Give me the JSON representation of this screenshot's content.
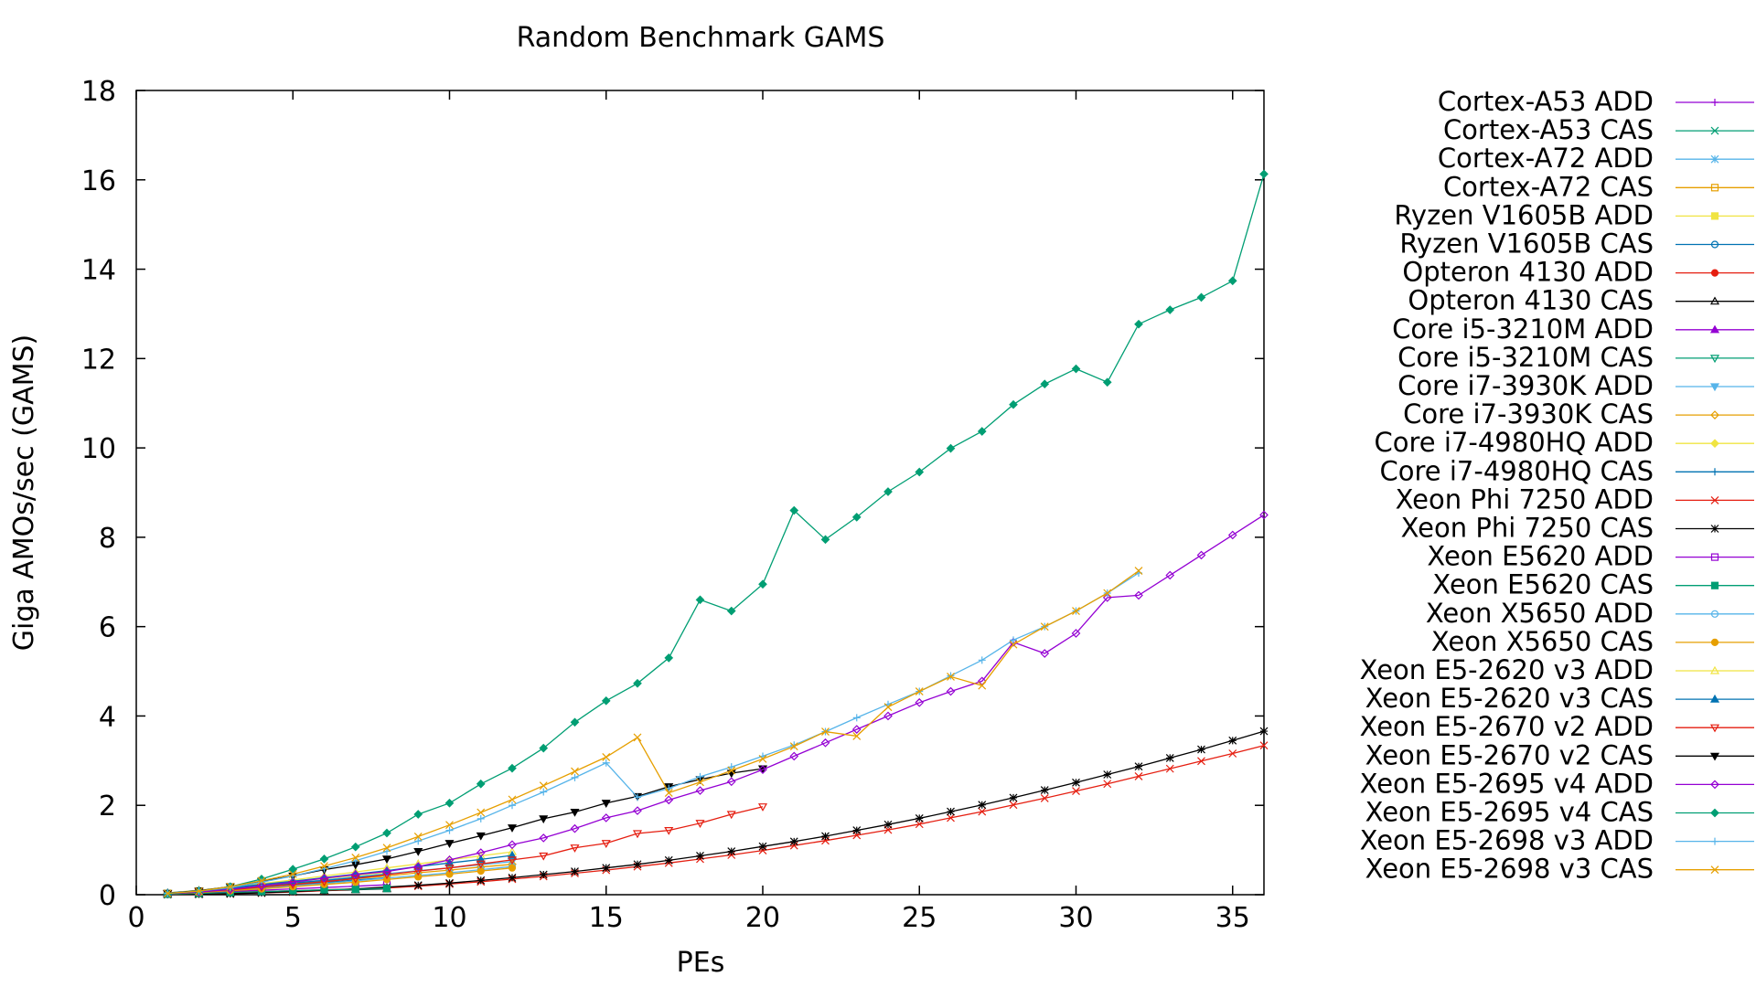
{
  "chart_data": {
    "type": "line",
    "title": "Random Benchmark GAMS",
    "xlabel": "PEs",
    "ylabel": "Giga AMOs/sec (GAMS)",
    "xlim": [
      0,
      36
    ],
    "ylim": [
      0,
      18
    ],
    "xticks": [
      0,
      5,
      10,
      15,
      20,
      25,
      30,
      35
    ],
    "yticks": [
      0,
      2,
      4,
      6,
      8,
      10,
      12,
      14,
      16,
      18
    ],
    "grid": false,
    "legend_position": "right",
    "series": [
      {
        "name": "Cortex-A53 ADD",
        "color": "#9400d3",
        "marker": "plus",
        "x": [
          1,
          2,
          3,
          4
        ],
        "y": [
          0.01,
          0.03,
          0.05,
          0.07
        ]
      },
      {
        "name": "Cortex-A53 CAS",
        "color": "#009e73",
        "marker": "cross",
        "x": [
          1,
          2,
          3,
          4
        ],
        "y": [
          0.01,
          0.02,
          0.04,
          0.05
        ]
      },
      {
        "name": "Cortex-A72 ADD",
        "color": "#56b4e9",
        "marker": "star",
        "x": [
          1,
          2,
          3,
          4
        ],
        "y": [
          0.02,
          0.05,
          0.09,
          0.12
        ]
      },
      {
        "name": "Cortex-A72 CAS",
        "color": "#e69f00",
        "marker": "square",
        "x": [
          1,
          2,
          3,
          4
        ],
        "y": [
          0.02,
          0.04,
          0.08,
          0.1
        ]
      },
      {
        "name": "Ryzen V1605B ADD",
        "color": "#f0e442",
        "marker": "filled-square",
        "x": [
          1,
          2,
          3,
          4,
          5,
          6,
          7,
          8
        ],
        "y": [
          0.03,
          0.07,
          0.12,
          0.18,
          0.24,
          0.3,
          0.36,
          0.42
        ]
      },
      {
        "name": "Ryzen V1605B CAS",
        "color": "#0072b2",
        "marker": "circle",
        "x": [
          1,
          2,
          3,
          4,
          5,
          6,
          7,
          8
        ],
        "y": [
          0.03,
          0.06,
          0.11,
          0.16,
          0.21,
          0.27,
          0.33,
          0.38
        ]
      },
      {
        "name": "Opteron 4130 ADD",
        "color": "#e51e10",
        "marker": "filled-circle",
        "x": [
          1,
          2,
          3,
          4,
          5,
          6,
          7,
          8
        ],
        "y": [
          0.01,
          0.03,
          0.05,
          0.07,
          0.09,
          0.11,
          0.13,
          0.15
        ]
      },
      {
        "name": "Opteron 4130 CAS",
        "color": "#000000",
        "marker": "triangle",
        "x": [
          1,
          2,
          3,
          4,
          5,
          6,
          7,
          8
        ],
        "y": [
          0.01,
          0.02,
          0.04,
          0.06,
          0.07,
          0.09,
          0.11,
          0.13
        ]
      },
      {
        "name": "Core i5-3210M ADD",
        "color": "#9400d3",
        "marker": "filled-triangle",
        "x": [
          1,
          2,
          3,
          4
        ],
        "y": [
          0.03,
          0.07,
          0.11,
          0.15
        ]
      },
      {
        "name": "Core i5-3210M CAS",
        "color": "#009e73",
        "marker": "triangle-down",
        "x": [
          1,
          2,
          3,
          4
        ],
        "y": [
          0.03,
          0.06,
          0.1,
          0.13
        ]
      },
      {
        "name": "Core i7-3930K ADD",
        "color": "#56b4e9",
        "marker": "filled-triangle-down",
        "x": [
          1,
          2,
          3,
          4,
          5,
          6,
          7,
          8,
          9,
          10,
          11,
          12
        ],
        "y": [
          0.03,
          0.08,
          0.14,
          0.2,
          0.27,
          0.33,
          0.4,
          0.47,
          0.54,
          0.6,
          0.67,
          0.74
        ]
      },
      {
        "name": "Core i7-3930K CAS",
        "color": "#e69f00",
        "marker": "diamond",
        "x": [
          1,
          2,
          3,
          4,
          5,
          6,
          7,
          8,
          9,
          10,
          11,
          12
        ],
        "y": [
          0.03,
          0.07,
          0.13,
          0.19,
          0.24,
          0.3,
          0.36,
          0.42,
          0.49,
          0.55,
          0.62,
          0.68
        ]
      },
      {
        "name": "Core i7-4980HQ ADD",
        "color": "#f0e442",
        "marker": "filled-diamond",
        "x": [
          1,
          2,
          3,
          4,
          5,
          6,
          7,
          8
        ],
        "y": [
          0.04,
          0.09,
          0.15,
          0.22,
          0.29,
          0.36,
          0.43,
          0.5
        ]
      },
      {
        "name": "Core i7-4980HQ CAS",
        "color": "#0072b2",
        "marker": "plus",
        "x": [
          1,
          2,
          3,
          4,
          5,
          6,
          7,
          8
        ],
        "y": [
          0.03,
          0.08,
          0.14,
          0.2,
          0.26,
          0.32,
          0.38,
          0.45
        ]
      },
      {
        "name": "Xeon Phi 7250 ADD",
        "color": "#e51e10",
        "marker": "cross",
        "x": [
          1,
          2,
          3,
          4,
          5,
          6,
          7,
          8,
          9,
          10,
          11,
          12,
          13,
          14,
          15,
          16,
          17,
          18,
          19,
          20,
          21,
          22,
          23,
          24,
          25,
          26,
          27,
          28,
          29,
          30,
          31,
          32,
          33,
          34,
          35,
          36
        ],
        "y": [
          0.003,
          0.01,
          0.02,
          0.04,
          0.06,
          0.09,
          0.12,
          0.15,
          0.19,
          0.24,
          0.29,
          0.35,
          0.41,
          0.48,
          0.55,
          0.63,
          0.71,
          0.8,
          0.89,
          0.99,
          1.1,
          1.21,
          1.33,
          1.45,
          1.58,
          1.72,
          1.86,
          2.01,
          2.16,
          2.32,
          2.48,
          2.65,
          2.82,
          2.99,
          3.16,
          3.34
        ]
      },
      {
        "name": "Xeon Phi 7250 CAS",
        "color": "#000000",
        "marker": "star",
        "x": [
          1,
          2,
          3,
          4,
          5,
          6,
          7,
          8,
          9,
          10,
          11,
          12,
          13,
          14,
          15,
          16,
          17,
          18,
          19,
          20,
          21,
          22,
          23,
          24,
          25,
          26,
          27,
          28,
          29,
          30,
          31,
          32,
          33,
          34,
          35,
          36
        ],
        "y": [
          0.003,
          0.01,
          0.02,
          0.04,
          0.07,
          0.1,
          0.13,
          0.17,
          0.21,
          0.26,
          0.32,
          0.38,
          0.45,
          0.52,
          0.6,
          0.68,
          0.77,
          0.87,
          0.97,
          1.08,
          1.19,
          1.31,
          1.44,
          1.57,
          1.71,
          1.86,
          2.01,
          2.17,
          2.34,
          2.51,
          2.69,
          2.87,
          3.06,
          3.25,
          3.45,
          3.66
        ]
      },
      {
        "name": "Xeon E5620 ADD",
        "color": "#9400d3",
        "marker": "square",
        "x": [
          1,
          2,
          3,
          4,
          5,
          6,
          7,
          8
        ],
        "y": [
          0.02,
          0.04,
          0.07,
          0.1,
          0.13,
          0.16,
          0.19,
          0.22
        ]
      },
      {
        "name": "Xeon E5620 CAS",
        "color": "#009e73",
        "marker": "filled-square",
        "x": [
          1,
          2,
          3,
          4,
          5,
          6,
          7,
          8
        ],
        "y": [
          0.01,
          0.03,
          0.05,
          0.07,
          0.09,
          0.11,
          0.12,
          0.14
        ]
      },
      {
        "name": "Xeon X5650 ADD",
        "color": "#56b4e9",
        "marker": "circle",
        "x": [
          1,
          2,
          3,
          4,
          5,
          6,
          7,
          8,
          9,
          10,
          11,
          12
        ],
        "y": [
          0.02,
          0.06,
          0.1,
          0.15,
          0.2,
          0.25,
          0.31,
          0.37,
          0.43,
          0.49,
          0.56,
          0.63
        ]
      },
      {
        "name": "Xeon X5650 CAS",
        "color": "#e69f00",
        "marker": "filled-circle",
        "x": [
          1,
          2,
          3,
          4,
          5,
          6,
          7,
          8,
          9,
          10,
          11,
          12
        ],
        "y": [
          0.02,
          0.05,
          0.09,
          0.13,
          0.18,
          0.23,
          0.28,
          0.34,
          0.4,
          0.46,
          0.53,
          0.6
        ]
      },
      {
        "name": "Xeon E5-2620 v3 ADD",
        "color": "#f0e442",
        "marker": "triangle",
        "x": [
          1,
          2,
          3,
          4,
          5,
          6,
          7,
          8,
          9,
          10,
          11,
          12
        ],
        "y": [
          0.04,
          0.1,
          0.17,
          0.25,
          0.33,
          0.42,
          0.51,
          0.6,
          0.69,
          0.78,
          0.87,
          0.96
        ]
      },
      {
        "name": "Xeon E5-2620 v3 CAS",
        "color": "#0072b2",
        "marker": "filled-triangle",
        "x": [
          1,
          2,
          3,
          4,
          5,
          6,
          7,
          8,
          9,
          10,
          11,
          12
        ],
        "y": [
          0.04,
          0.09,
          0.16,
          0.23,
          0.3,
          0.38,
          0.46,
          0.54,
          0.63,
          0.71,
          0.79,
          0.88
        ]
      },
      {
        "name": "Xeon E5-2670 v2 ADD",
        "color": "#e51e10",
        "marker": "triangle-down",
        "x": [
          1,
          2,
          3,
          4,
          5,
          6,
          7,
          8,
          9,
          10,
          11,
          12,
          13,
          14,
          15,
          16,
          17,
          18,
          19,
          20
        ],
        "y": [
          0.02,
          0.06,
          0.11,
          0.17,
          0.23,
          0.29,
          0.36,
          0.45,
          0.53,
          0.6,
          0.69,
          0.78,
          0.87,
          1.05,
          1.15,
          1.37,
          1.44,
          1.6,
          1.8,
          1.97
        ]
      },
      {
        "name": "Xeon E5-2670 v2 CAS",
        "color": "#000000",
        "marker": "filled-triangle-down",
        "x": [
          1,
          2,
          3,
          4,
          5,
          6,
          7,
          8,
          9,
          10,
          11,
          12,
          13,
          14,
          15,
          16,
          17,
          18,
          19,
          20
        ],
        "y": [
          0.03,
          0.09,
          0.18,
          0.3,
          0.42,
          0.56,
          0.67,
          0.8,
          0.97,
          1.15,
          1.32,
          1.5,
          1.7,
          1.85,
          2.05,
          2.2,
          2.42,
          2.58,
          2.72,
          2.82
        ]
      },
      {
        "name": "Xeon E5-2695 v4 ADD",
        "color": "#9400d3",
        "marker": "diamond",
        "x": [
          1,
          2,
          3,
          4,
          5,
          6,
          7,
          8,
          9,
          10,
          11,
          12,
          13,
          14,
          15,
          16,
          17,
          18,
          19,
          20,
          21,
          22,
          23,
          24,
          25,
          26,
          27,
          28,
          29,
          30,
          31,
          32,
          33,
          34,
          35,
          36
        ],
        "y": [
          0.02,
          0.06,
          0.12,
          0.2,
          0.28,
          0.37,
          0.45,
          0.52,
          0.63,
          0.78,
          0.94,
          1.12,
          1.27,
          1.48,
          1.72,
          1.88,
          2.12,
          2.33,
          2.53,
          2.8,
          3.1,
          3.4,
          3.7,
          4.0,
          4.3,
          4.55,
          4.78,
          5.65,
          5.4,
          5.85,
          6.65,
          6.7,
          7.15,
          7.6,
          8.05,
          8.5
        ]
      },
      {
        "name": "Xeon E5-2695 v4 CAS",
        "color": "#009e73",
        "marker": "filled-diamond",
        "x": [
          1,
          2,
          3,
          4,
          5,
          6,
          7,
          8,
          9,
          10,
          11,
          12,
          13,
          14,
          15,
          16,
          17,
          18,
          19,
          20,
          21,
          22,
          23,
          24,
          25,
          26,
          27,
          28,
          29,
          30,
          31,
          32,
          33,
          34,
          35,
          36
        ],
        "y": [
          0.02,
          0.08,
          0.18,
          0.35,
          0.57,
          0.8,
          1.07,
          1.38,
          1.8,
          2.05,
          2.48,
          2.83,
          3.28,
          3.86,
          4.34,
          4.73,
          5.3,
          6.6,
          6.35,
          6.95,
          8.6,
          7.95,
          8.45,
          9.02,
          9.46,
          9.99,
          10.37,
          10.97,
          11.43,
          11.77,
          11.47,
          12.77,
          13.09,
          13.37,
          13.74,
          16.13
        ]
      },
      {
        "name": "Xeon E5-2698 v3 ADD",
        "color": "#56b4e9",
        "marker": "plus",
        "x": [
          1,
          2,
          3,
          4,
          5,
          6,
          7,
          8,
          9,
          10,
          11,
          12,
          13,
          14,
          15,
          16,
          17,
          18,
          19,
          20,
          21,
          22,
          23,
          24,
          25,
          26,
          27,
          28,
          29,
          30,
          31,
          32
        ],
        "y": [
          0.03,
          0.08,
          0.16,
          0.28,
          0.42,
          0.58,
          0.76,
          0.97,
          1.2,
          1.44,
          1.7,
          2.0,
          2.3,
          2.62,
          2.95,
          2.18,
          2.38,
          2.64,
          2.86,
          3.1,
          3.35,
          3.65,
          3.96,
          4.26,
          4.55,
          4.9,
          5.25,
          5.7,
          6.0,
          6.35,
          6.75,
          7.2
        ]
      },
      {
        "name": "Xeon E5-2698 v3 CAS",
        "color": "#e69f00",
        "marker": "cross",
        "x": [
          1,
          2,
          3,
          4,
          5,
          6,
          7,
          8,
          9,
          10,
          11,
          12,
          13,
          14,
          15,
          16,
          17,
          18,
          19,
          20,
          21,
          22,
          23,
          24,
          25,
          26,
          27,
          28,
          29,
          30,
          31,
          32
        ],
        "y": [
          0.03,
          0.08,
          0.18,
          0.31,
          0.46,
          0.64,
          0.83,
          1.05,
          1.3,
          1.56,
          1.84,
          2.13,
          2.44,
          2.76,
          3.08,
          3.52,
          2.28,
          2.52,
          2.78,
          3.04,
          3.32,
          3.65,
          3.55,
          4.2,
          4.55,
          4.88,
          4.68,
          5.6,
          6.0,
          6.35,
          6.75,
          7.25
        ]
      }
    ]
  }
}
